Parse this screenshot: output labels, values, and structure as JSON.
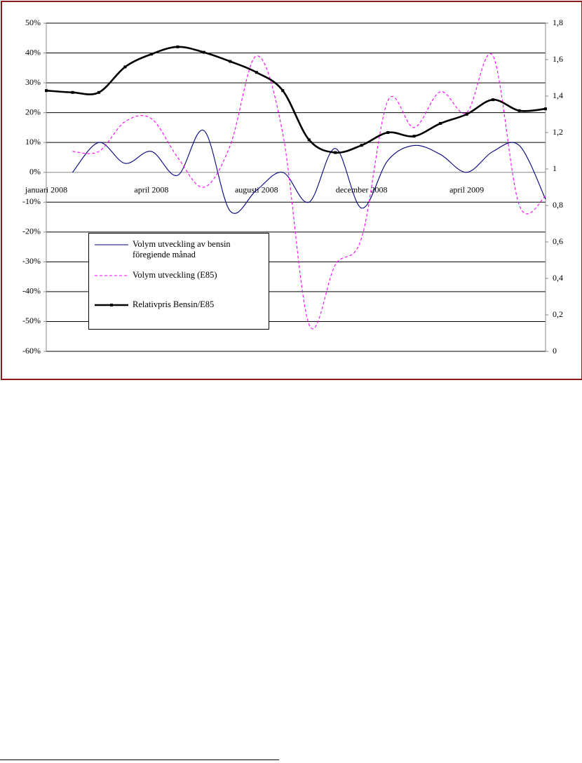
{
  "chart_data": {
    "type": "line",
    "categories": [
      "januari 2008",
      null,
      null,
      null,
      "april 2008",
      null,
      null,
      null,
      "augusti 2008",
      null,
      null,
      null,
      "december 2008",
      null,
      null,
      null,
      "april 2009",
      null,
      null,
      null
    ],
    "series": [
      {
        "name": "Volym utveckling av bensin föregiende månad",
        "color": "#000080",
        "dash": false,
        "values": [
          null,
          0,
          10,
          3,
          7,
          -1,
          14,
          -13,
          -6,
          0,
          -10,
          8,
          -12,
          4,
          9,
          6,
          0,
          7,
          9,
          -9
        ]
      },
      {
        "name": "Volym utveckling (E85)",
        "color": "#ff00ff",
        "dash": true,
        "values": [
          null,
          7,
          7,
          17,
          18,
          5,
          -5,
          9,
          39,
          13,
          -51,
          -31,
          -22,
          24,
          15,
          27,
          20,
          39,
          -11,
          -8
        ]
      },
      {
        "name": "Relativpris Bensin/E85",
        "color": "#000000",
        "dash": false,
        "markers": true,
        "axis": "y2",
        "values": [
          1.43,
          1.42,
          1.42,
          1.56,
          1.63,
          1.67,
          1.64,
          1.59,
          1.53,
          1.43,
          1.16,
          1.09,
          1.13,
          1.2,
          1.18,
          1.25,
          1.3,
          1.38,
          1.32,
          1.33
        ]
      }
    ],
    "ylim": [
      -60,
      50
    ],
    "yticks": [
      {
        "value": -60,
        "label": "-60%"
      },
      {
        "value": -50,
        "label": "-50%"
      },
      {
        "value": -40,
        "label": "-40%"
      },
      {
        "value": -30,
        "label": "-30%"
      },
      {
        "value": -20,
        "label": "-20%"
      },
      {
        "value": -10,
        "label": "-10%"
      },
      {
        "value": 0,
        "label": "0%"
      },
      {
        "value": 10,
        "label": "10%"
      },
      {
        "value": 20,
        "label": "20%"
      },
      {
        "value": 30,
        "label": "30%"
      },
      {
        "value": 40,
        "label": "40%"
      },
      {
        "value": 50,
        "label": "50%"
      }
    ],
    "y2lim": [
      0,
      1.8
    ],
    "y2ticks": [
      0,
      {
        "value": 0.2,
        "label": "0,2"
      },
      {
        "value": 0.4,
        "label": "0,4"
      },
      {
        "value": 0.6,
        "label": "0,6"
      },
      {
        "value": 0.8,
        "label": "0,8"
      },
      1,
      {
        "value": 1.2,
        "label": "1,2"
      },
      {
        "value": 1.4,
        "label": "1,4"
      },
      {
        "value": 1.6,
        "label": "1,6"
      },
      {
        "value": 1.8,
        "label": "1,8"
      }
    ],
    "grid": true
  }
}
